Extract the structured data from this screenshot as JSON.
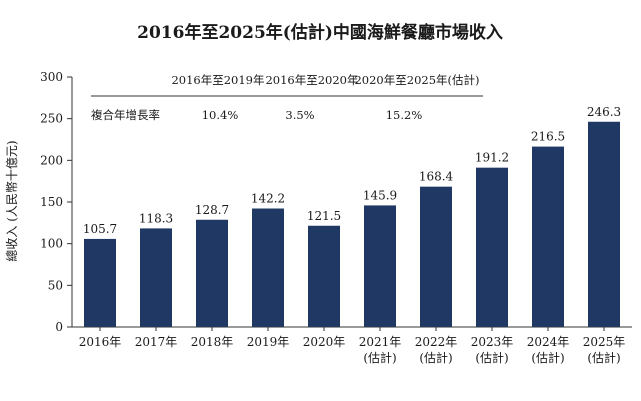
{
  "chart_data": {
    "type": "bar",
    "title": "2016年至2025年(估計)中國海鮮餐廳市場收入",
    "ylabel": "總收入 (人民幣十億元)",
    "xlabel": "",
    "categories": [
      [
        "2016年"
      ],
      [
        "2017年"
      ],
      [
        "2018年"
      ],
      [
        "2019年"
      ],
      [
        "2020年"
      ],
      [
        "2021年",
        "(估計)"
      ],
      [
        "2022年",
        "(估計)"
      ],
      [
        "2023年",
        "(估計)"
      ],
      [
        "2024年",
        "(估計)"
      ],
      [
        "2025年",
        "(估計)"
      ]
    ],
    "values": [
      105.7,
      118.3,
      128.7,
      142.2,
      121.5,
      145.9,
      168.4,
      191.2,
      216.5,
      246.3
    ],
    "value_labels": [
      "105.7",
      "118.3",
      "128.7",
      "142.2",
      "121.5",
      "145.9",
      "168.4",
      "191.2",
      "216.5",
      "246.3"
    ],
    "ylim": [
      0,
      300
    ],
    "yticks": [
      0,
      50,
      100,
      150,
      200,
      250,
      300
    ],
    "grid": false,
    "bar_color": "#1f3864",
    "cagr_table": {
      "row_label": "複合年增長率",
      "periods": [
        {
          "period": "2016年至2019年",
          "value": "10.4%"
        },
        {
          "period": "2016年至2020年",
          "value": "3.5%"
        },
        {
          "period": "2020年至2025年(估計)",
          "value": "15.2%"
        }
      ]
    }
  }
}
